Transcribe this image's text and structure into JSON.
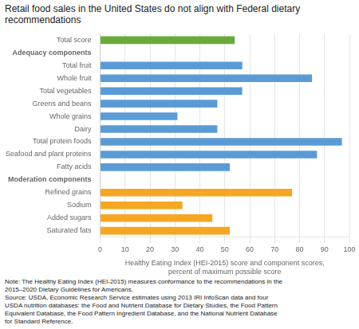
{
  "chart_data": {
    "type": "bar",
    "orientation": "horizontal",
    "title": "Retail food sales in the United States do not align with Federal dietary recommendations",
    "categories": [
      "Total score",
      "Adequacy components",
      "Total fruit",
      "Whole fruit",
      "Total vegetables",
      "Greens and beans",
      "Whole grains",
      "Dairy",
      "Total protein foods",
      "Seafood and plant proteins",
      "Fatty acids",
      "Moderation components",
      "Refined grains",
      "Sodium",
      "Added sugars",
      "Saturated fats"
    ],
    "values": [
      54,
      null,
      57,
      85,
      57,
      47,
      31,
      47,
      97,
      87,
      52,
      null,
      77,
      33,
      45,
      52
    ],
    "colors": [
      "#6aaa3a",
      null,
      "#5b9bd5",
      "#5b9bd5",
      "#5b9bd5",
      "#5b9bd5",
      "#5b9bd5",
      "#5b9bd5",
      "#5b9bd5",
      "#5b9bd5",
      "#5b9bd5",
      null,
      "#f5a623",
      "#f5a623",
      "#f5a623",
      "#f5a623"
    ],
    "xlabel": [
      "Healthy Eating Index (HEI-2015) score and component scores,",
      "percent of maximum possible score"
    ],
    "xlim": [
      0,
      100
    ],
    "xticks": [
      0,
      10,
      20,
      30,
      40,
      50,
      60,
      70,
      80,
      90,
      100
    ],
    "grid": true,
    "annotations": [
      "Note: The Healthy Eating Index (HEI-2015) measures conformance to the recommendations in the",
      "2015–2020 Dietary Guidelines for Americans.",
      "Source: USDA, Economic Research Service estimates using 2013 IRI InfoScan data and four",
      "USDA nutrition databases: the Food and Nutrient Database for Dietary Studies, the Food Pattern",
      "Equivalent Database, the Food Pattern Ingredient Database, and the National Nutrient Database",
      "for Standard Reference."
    ]
  }
}
